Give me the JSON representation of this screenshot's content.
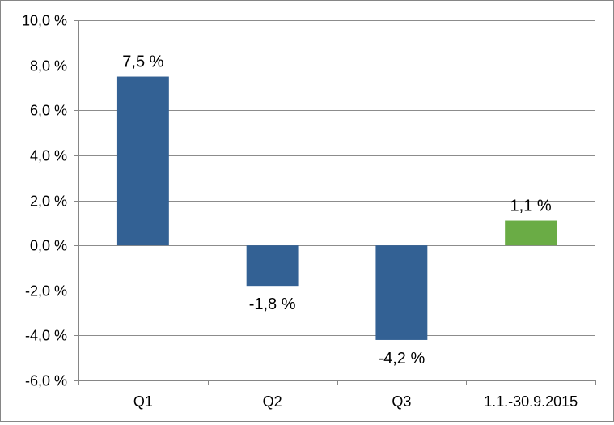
{
  "chart_data": {
    "type": "bar",
    "title": "",
    "xlabel": "",
    "ylabel": "",
    "categories": [
      "Q1",
      "Q2",
      "Q3",
      "1.1.-30.9.2015"
    ],
    "values": [
      7.5,
      -1.8,
      -4.2,
      1.1
    ],
    "data_labels": [
      "7,5 %",
      "-1,8 %",
      "-4,2 %",
      "1,1 %"
    ],
    "bar_colors": [
      "#336194",
      "#336194",
      "#336194",
      "#6aac45"
    ],
    "ylim": [
      -6,
      10
    ],
    "y_ticks": [
      10,
      8,
      6,
      4,
      2,
      0,
      -2,
      -4,
      -6
    ],
    "y_tick_labels": [
      "10,0 %",
      "8,0 %",
      "6,0 %",
      "4,0 %",
      "2,0 %",
      "0,0 %",
      "-2,0 %",
      "-4,0 %",
      "-6,0 %"
    ],
    "grid": true,
    "legend": "none",
    "colors": {
      "grid": "#8c8c8c",
      "axis": "#868686",
      "border": "#868686"
    }
  }
}
